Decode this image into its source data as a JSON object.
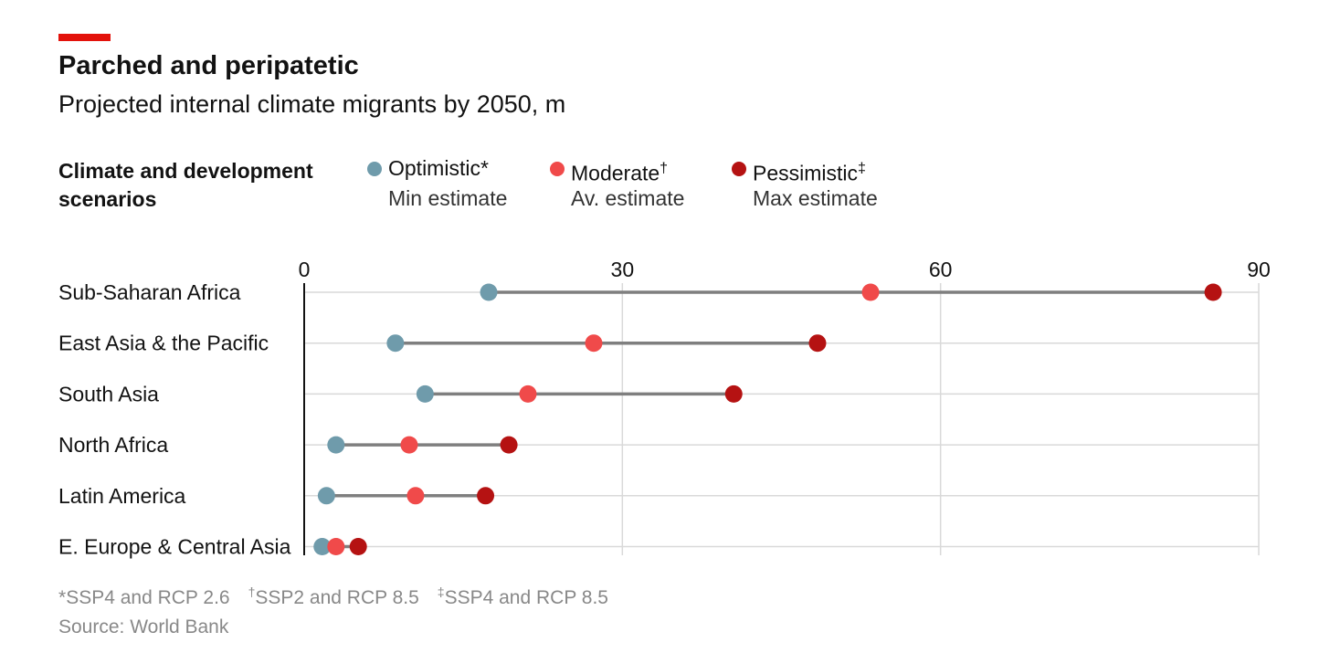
{
  "title": "Parched and peripatetic",
  "subtitle": "Projected internal climate migrants by 2050, m",
  "legend": {
    "heading": "Climate and development scenarios",
    "items": [
      {
        "label": "Optimistic",
        "mark": "*",
        "estimate": "Min estimate",
        "color": "#6f9bab"
      },
      {
        "label": "Moderate",
        "mark": "†",
        "estimate": "Av. estimate",
        "color": "#f04a4a"
      },
      {
        "label": "Pessimistic",
        "mark": "‡",
        "estimate": "Max estimate",
        "color": "#b51212"
      }
    ]
  },
  "footnotes": [
    {
      "mark": "*",
      "text": "SSP4 and RCP 2.6"
    },
    {
      "mark": "†",
      "text": "SSP2 and RCP 8.5"
    },
    {
      "mark": "‡",
      "text": "SSP4 and RCP 8.5"
    }
  ],
  "source": "Source: World Bank",
  "colors": {
    "accent": "#e3120b",
    "optimistic": "#6f9bab",
    "moderate": "#f04a4a",
    "pessimistic": "#b51212",
    "connector": "#7f7f7f",
    "grid": "#d9d9d9"
  },
  "chart_data": {
    "type": "scatter",
    "subtype": "dumbbell",
    "categories": [
      "Sub-Saharan Africa",
      "East Asia & the Pacific",
      "South Asia",
      "North Africa",
      "Latin America",
      "E. Europe & Central Asia"
    ],
    "series": [
      {
        "name": "Optimistic",
        "values": [
          17.4,
          8.6,
          11.4,
          3.0,
          2.1,
          1.7
        ]
      },
      {
        "name": "Moderate",
        "values": [
          53.4,
          27.3,
          21.1,
          9.9,
          10.5,
          3.0
        ]
      },
      {
        "name": "Pessimistic",
        "values": [
          85.7,
          48.4,
          40.5,
          19.3,
          17.1,
          5.1
        ]
      }
    ],
    "xlim": [
      0,
      90
    ],
    "xticks": [
      0,
      30,
      60,
      90
    ],
    "xtick_position": "top",
    "grid": true
  }
}
